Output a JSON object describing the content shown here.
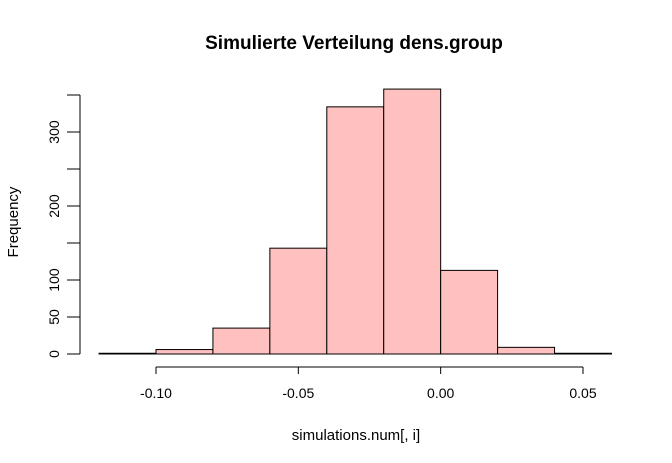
{
  "chart_data": {
    "type": "bar",
    "title": "Simulierte Verteilung dens.group",
    "xlabel": "simulations.num[, i]",
    "ylabel": "Frequency",
    "bins": [
      {
        "x0": -0.12,
        "x1": -0.1,
        "count": 1
      },
      {
        "x0": -0.1,
        "x1": -0.08,
        "count": 6
      },
      {
        "x0": -0.08,
        "x1": -0.06,
        "count": 35
      },
      {
        "x0": -0.06,
        "x1": -0.04,
        "count": 143
      },
      {
        "x0": -0.04,
        "x1": -0.02,
        "count": 334
      },
      {
        "x0": -0.02,
        "x1": 0.0,
        "count": 358
      },
      {
        "x0": 0.0,
        "x1": 0.02,
        "count": 113
      },
      {
        "x0": 0.02,
        "x1": 0.04,
        "count": 9
      },
      {
        "x0": 0.04,
        "x1": 0.06,
        "count": 1
      }
    ],
    "xlim": [
      -0.12,
      0.06
    ],
    "ylim": [
      0,
      350
    ],
    "xticks": [
      -0.1,
      -0.05,
      0.0,
      0.05
    ],
    "xtick_labels": [
      "-0.10",
      "-0.05",
      "0.00",
      "0.05"
    ],
    "yticks": [
      0,
      50,
      100,
      150,
      200,
      250,
      300,
      350
    ],
    "ytick_labels": [
      "0",
      "50",
      "100",
      "",
      "200",
      "",
      "300",
      ""
    ],
    "bar_color": "#ffc0c0",
    "grid": false,
    "legend": "none"
  }
}
